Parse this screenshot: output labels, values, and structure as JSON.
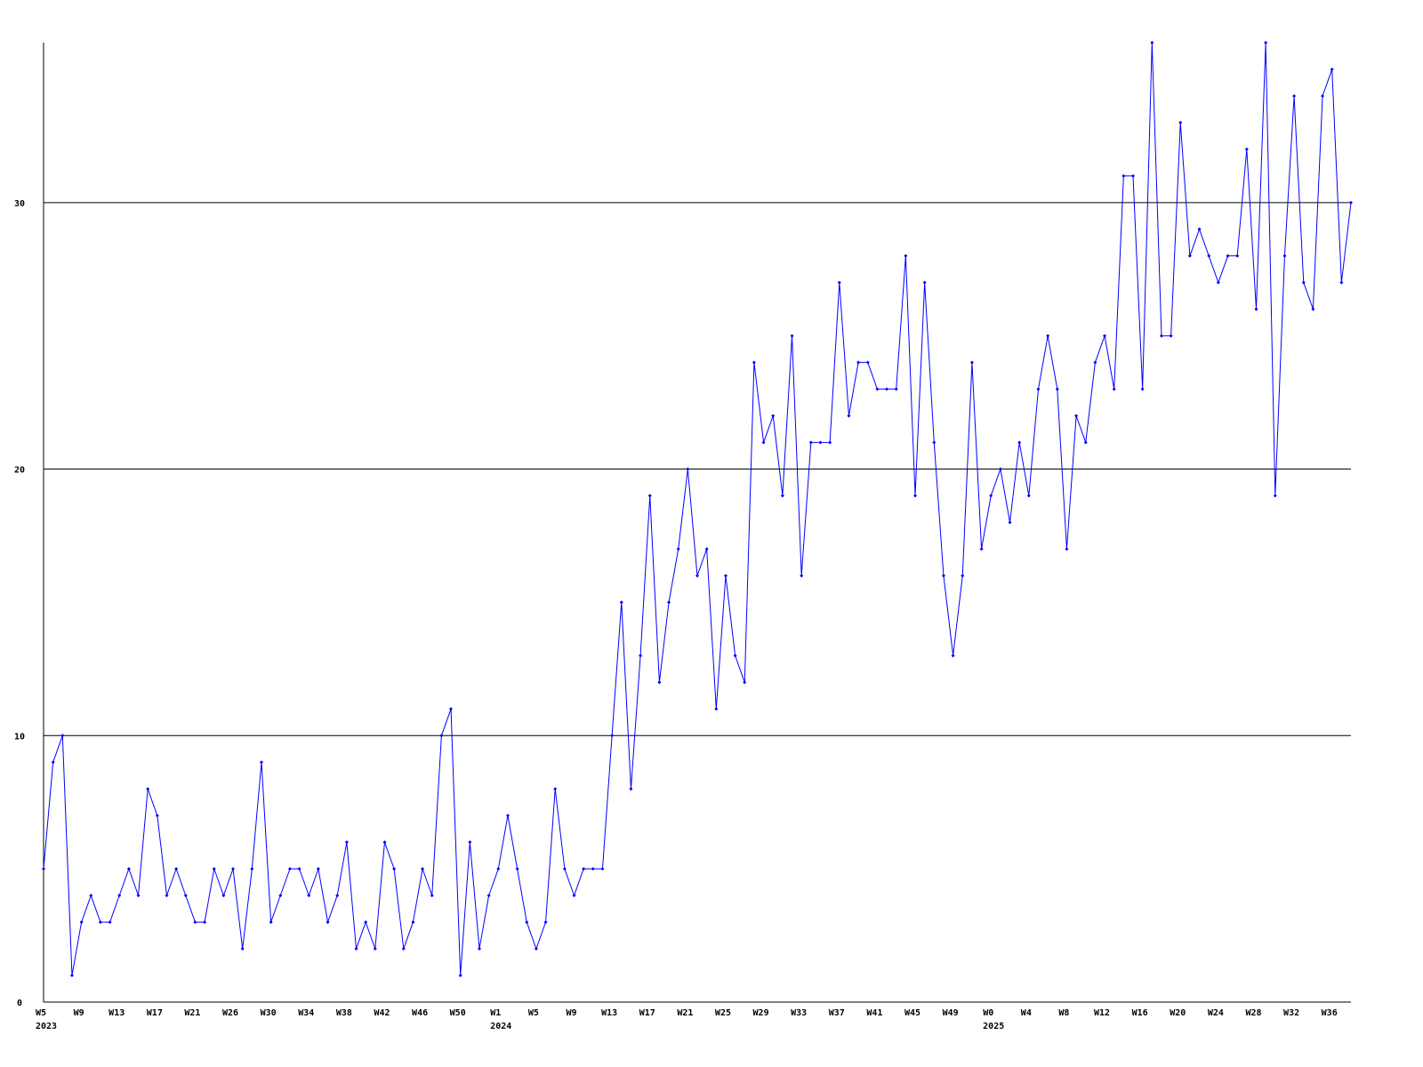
{
  "chart_data": {
    "type": "line",
    "categories": [
      "W5",
      null,
      null,
      null,
      "W9",
      null,
      null,
      null,
      "W13",
      null,
      null,
      null,
      "W17",
      null,
      null,
      null,
      "W21",
      null,
      null,
      null,
      "W26",
      null,
      null,
      null,
      "W30",
      null,
      null,
      null,
      "W34",
      null,
      null,
      null,
      "W38",
      null,
      null,
      null,
      "W42",
      null,
      null,
      null,
      "W46",
      null,
      null,
      null,
      "W50",
      null,
      null,
      null,
      "W1",
      null,
      null,
      null,
      "W5",
      null,
      null,
      null,
      "W9",
      null,
      null,
      null,
      "W13",
      null,
      null,
      null,
      "W17",
      null,
      null,
      null,
      "W21",
      null,
      null,
      null,
      "W25",
      null,
      null,
      null,
      "W29",
      null,
      null,
      null,
      "W33",
      null,
      null,
      null,
      "W37",
      null,
      null,
      null,
      "W41",
      null,
      null,
      null,
      "W45",
      null,
      null,
      null,
      "W49",
      null,
      null,
      null,
      "W0",
      null,
      null,
      null,
      "W4",
      null,
      null,
      null,
      "W8",
      null,
      null,
      null,
      "W12",
      null,
      null,
      null,
      "W16",
      null,
      null,
      null,
      "W20",
      null,
      null,
      null,
      "W24",
      null,
      null,
      null,
      "W28",
      null,
      null,
      null,
      "W32",
      null,
      null,
      null,
      "W36",
      null,
      null
    ],
    "years": [
      "2023",
      null,
      null,
      null,
      null,
      null,
      null,
      null,
      null,
      null,
      null,
      null,
      null,
      null,
      null,
      null,
      null,
      null,
      null,
      null,
      null,
      null,
      null,
      null,
      null,
      null,
      null,
      null,
      null,
      null,
      null,
      null,
      null,
      null,
      null,
      null,
      null,
      null,
      null,
      null,
      null,
      null,
      null,
      null,
      null,
      null,
      null,
      null,
      "2024",
      null,
      null,
      null,
      null,
      null,
      null,
      null,
      null,
      null,
      null,
      null,
      null,
      null,
      null,
      null,
      null,
      null,
      null,
      null,
      null,
      null,
      null,
      null,
      null,
      null,
      null,
      null,
      null,
      null,
      null,
      null,
      null,
      null,
      null,
      null,
      null,
      null,
      null,
      null,
      null,
      null,
      null,
      null,
      null,
      null,
      null,
      null,
      null,
      null,
      null,
      null,
      "2025",
      null,
      null,
      null,
      null,
      null,
      null,
      null,
      null,
      null,
      null,
      null,
      null,
      null,
      null,
      null,
      null,
      null,
      null,
      null,
      null,
      null,
      null,
      null,
      null,
      null,
      null,
      null,
      null,
      null,
      null,
      null,
      null,
      null,
      null,
      null,
      null,
      null,
      null
    ],
    "series": [
      {
        "color": "#0000ff",
        "values": [
          5,
          9,
          10,
          1,
          3,
          4,
          3,
          3,
          4,
          5,
          4,
          8,
          7,
          4,
          5,
          4,
          3,
          3,
          5,
          4,
          5,
          2,
          5,
          9,
          3,
          4,
          5,
          5,
          4,
          5,
          3,
          4,
          6,
          2,
          3,
          2,
          6,
          5,
          2,
          3,
          5,
          4,
          10,
          11,
          1,
          6,
          2,
          4,
          5,
          7,
          5,
          3,
          2,
          3,
          8,
          5,
          4,
          5,
          5,
          5,
          10,
          15,
          8,
          13,
          19,
          12,
          15,
          17,
          20,
          16,
          17,
          11,
          16,
          13,
          12,
          24,
          21,
          22,
          19,
          25,
          16,
          21,
          21,
          21,
          27,
          22,
          24,
          24,
          23,
          23,
          23,
          28,
          19,
          27,
          21,
          16,
          13,
          16,
          24,
          17,
          19,
          20,
          18,
          21,
          19,
          23,
          25,
          23,
          17,
          22,
          21,
          24,
          25,
          23,
          31,
          31,
          23,
          36,
          25,
          25,
          33,
          28,
          29,
          28,
          27,
          28,
          28,
          32,
          26,
          36,
          19,
          28,
          34,
          27,
          26,
          34,
          35,
          27,
          30
        ]
      }
    ],
    "ylim": [
      0,
      36
    ],
    "yticks": [
      0,
      10,
      20,
      30
    ],
    "grid": true
  }
}
